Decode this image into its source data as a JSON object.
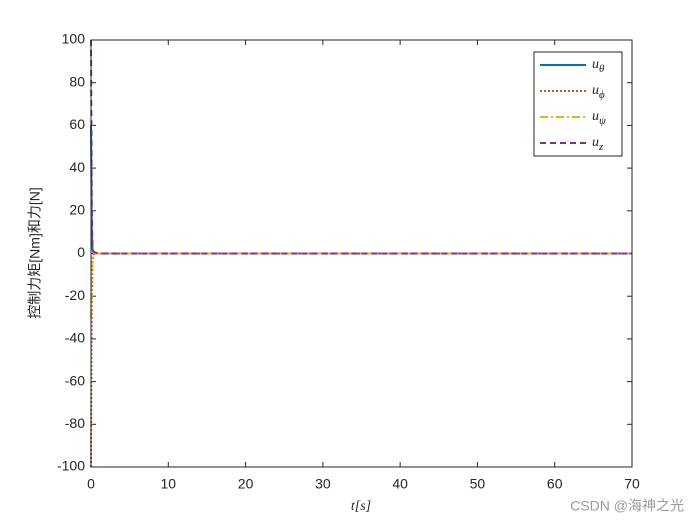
{
  "chart_data": {
    "type": "line",
    "x_label": "t[s]",
    "y_label": "控制力矩[Nm]和力[N]",
    "x": [
      0,
      0.1,
      0.2,
      0.3,
      0.5,
      1,
      70
    ],
    "series": [
      {
        "name": "uθ",
        "color": "#0072BD",
        "dash": "solid",
        "values": [
          60,
          10,
          2,
          0.5,
          0,
          0,
          0
        ]
      },
      {
        "name": "uϕ",
        "color": "#D95319",
        "dash": "dotted",
        "values": [
          -100,
          -20,
          -3,
          -0.5,
          0,
          0,
          0
        ]
      },
      {
        "name": "uψ",
        "color": "#EDB120",
        "dash": "dashdot",
        "values": [
          -30,
          -5,
          -1,
          0,
          0,
          0,
          0
        ]
      },
      {
        "name": "uz",
        "color": "#7E2F8E",
        "dash": "dashed",
        "values": [
          100,
          20,
          3,
          1,
          0.5,
          0,
          0
        ]
      }
    ],
    "xlim": [
      0,
      70
    ],
    "xticks": [
      0,
      10,
      20,
      30,
      40,
      50,
      60,
      70
    ],
    "ylim": [
      -100,
      100
    ],
    "yticks": [
      -100,
      -80,
      -60,
      -40,
      -20,
      0,
      20,
      40,
      60,
      80,
      100
    ],
    "legend": "upper right",
    "watermark": "CSDN @海神之光"
  }
}
